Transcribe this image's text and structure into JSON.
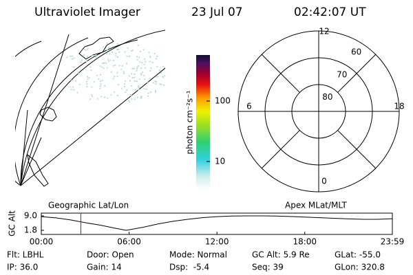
{
  "header": {
    "title": "Ultraviolet Imager",
    "date": "23 Jul 07",
    "time": "02:42:07 UT"
  },
  "colorbar": {
    "label": "photon cm⁻²s⁻¹",
    "lim": [
      3.5,
      577
    ],
    "ticks": [
      10,
      100
    ],
    "log": true
  },
  "polar": {
    "lat_lim": [
      90,
      60
    ],
    "lat_ticks": [
      80,
      70,
      60
    ],
    "mlt_ticks": [
      12,
      6,
      0,
      18
    ]
  },
  "chart_data": {
    "type": "line",
    "ylabel": "GC Alt",
    "left_label": "Geographic Lat/Lon",
    "right_label": "Apex MLat/MLT",
    "x": [
      0,
      1,
      2,
      3,
      4,
      5,
      5.8,
      7,
      8,
      9,
      10,
      11,
      12,
      13,
      14,
      15,
      16,
      17,
      18,
      19,
      20,
      21,
      22,
      23,
      23.983
    ],
    "series": [
      {
        "color": "#000000",
        "values": [
          8.6,
          8.0,
          7.0,
          5.6,
          4.4,
          2.9,
          1.8,
          3.4,
          5.0,
          6.3,
          7.3,
          8.1,
          8.6,
          8.9,
          9.0,
          9.0,
          8.9,
          8.7,
          8.4,
          8.1,
          7.8,
          7.5,
          7.3,
          7.3,
          7.6
        ]
      }
    ],
    "marker_x": 2.7,
    "marker_color": "#d00000",
    "xlim": [
      0,
      23.983
    ],
    "ylim": [
      1.8,
      9.0
    ],
    "xticks": [
      {
        "value": 0,
        "label": "00:00"
      },
      {
        "value": 6,
        "label": "06:00"
      },
      {
        "value": 12,
        "label": "12:00"
      },
      {
        "value": 18,
        "label": "18:00"
      },
      {
        "value": 23.983,
        "label": "23:59"
      }
    ],
    "yticks": [
      {
        "value": 9.0,
        "label": "9.0"
      },
      {
        "value": 1.8,
        "label": "1.8"
      }
    ]
  },
  "info": [
    [
      "Flt: LBHL",
      "Door: Open",
      "Mode: Normal",
      "GC Alt: 5.9 Re",
      "GLat: -55.0"
    ],
    [
      "IP: 36.0",
      "Gain: 14",
      "Dsp:  -5.4",
      "Seq: 39",
      "GLon: 320.8"
    ]
  ]
}
